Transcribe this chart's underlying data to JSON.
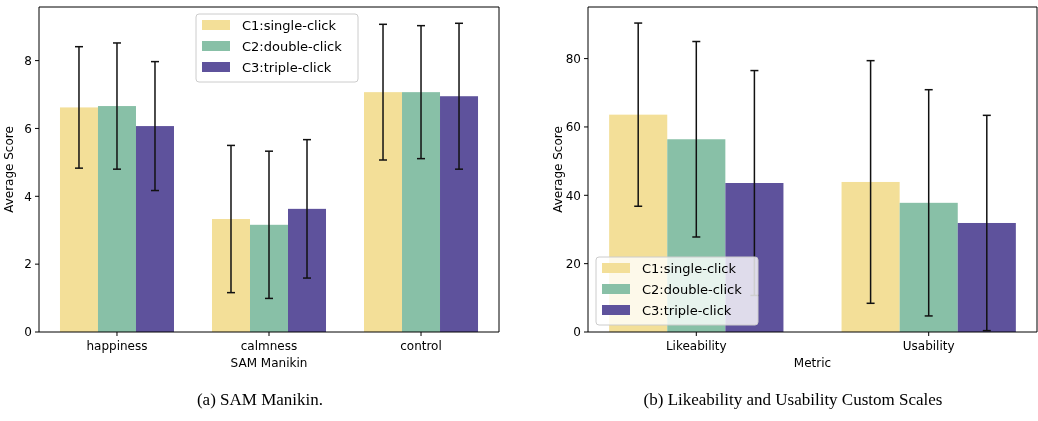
{
  "chart_data": [
    {
      "type": "bar",
      "xlabel": "SAM Manikin",
      "ylabel": "Average Score",
      "categories": [
        "happiness",
        "calmness",
        "control"
      ],
      "ylim": [
        0,
        9.58
      ],
      "yticks": [
        0,
        2,
        4,
        6,
        8
      ],
      "legend": "top",
      "annotations": [
        "(a) SAM Manikin."
      ],
      "series": [
        {
          "name": "C1:single-click",
          "color": "#f3df98",
          "values": [
            6.62,
            3.33,
            7.07
          ],
          "errors": [
            1.79,
            2.17,
            2.0
          ]
        },
        {
          "name": "C2:double-click",
          "color": "#88c0a7",
          "values": [
            6.66,
            3.16,
            7.07
          ],
          "errors": [
            1.86,
            2.17,
            1.96
          ]
        },
        {
          "name": "C3:triple-click",
          "color": "#5e529c",
          "values": [
            6.07,
            3.63,
            6.95
          ],
          "errors": [
            1.9,
            2.04,
            2.15
          ]
        }
      ]
    },
    {
      "type": "bar",
      "xlabel": "Metric",
      "ylabel": "Average Score",
      "categories": [
        "Likeability",
        "Usability"
      ],
      "ylim": [
        0,
        95.1
      ],
      "yticks": [
        0,
        20,
        40,
        60,
        80
      ],
      "legend": "bottom left",
      "annotations": [
        "(b) Likeability and Usability Custom Scales"
      ],
      "series": [
        {
          "name": "C1:single-click",
          "color": "#f3df98",
          "values": [
            63.6,
            43.9
          ],
          "errors": [
            26.8,
            35.5
          ]
        },
        {
          "name": "C2:double-click",
          "color": "#88c0a7",
          "values": [
            56.4,
            37.8
          ],
          "errors": [
            28.6,
            33.1
          ]
        },
        {
          "name": "C3:triple-click",
          "color": "#5e529c",
          "values": [
            43.6,
            31.9
          ],
          "errors": [
            32.9,
            31.5
          ]
        }
      ]
    }
  ]
}
